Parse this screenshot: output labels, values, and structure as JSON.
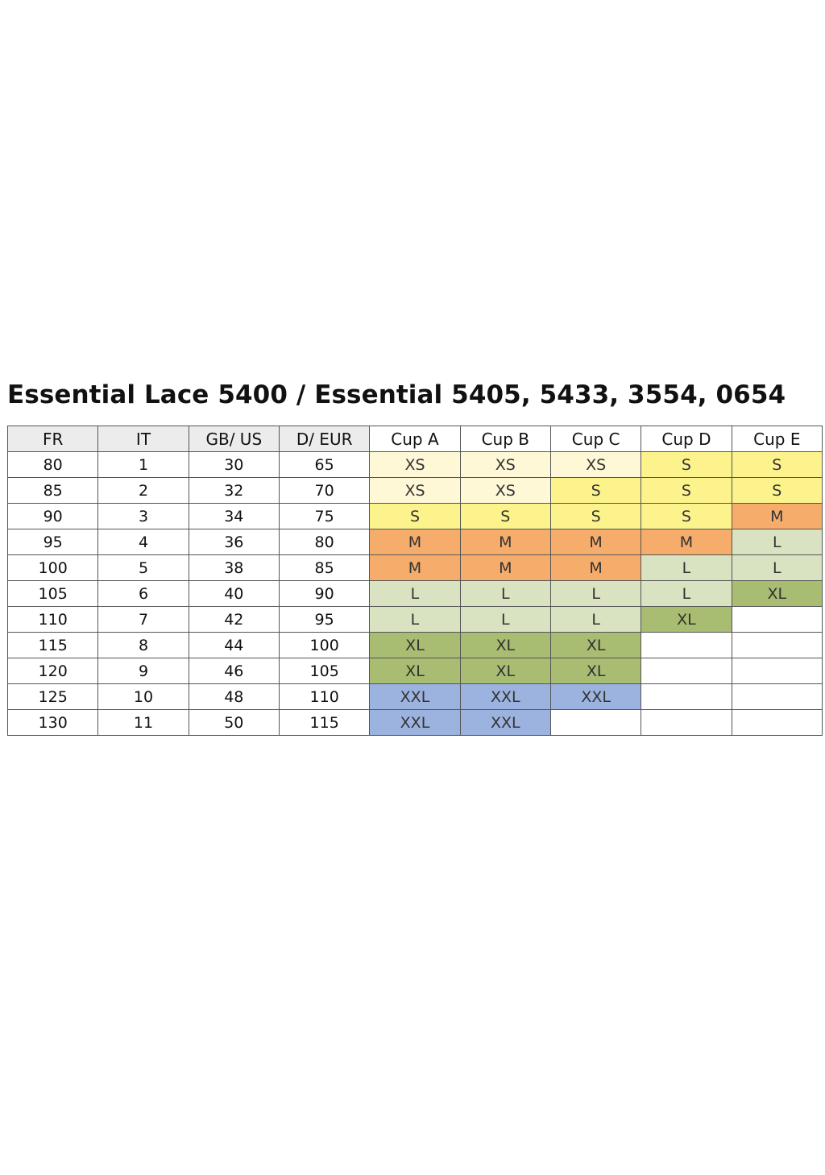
{
  "title": "Essential Lace 5400 / Essential 5405, 5433, 3554, 0654",
  "colors": {
    "XS": "#fef8d6",
    "S": "#fdf38d",
    "M": "#f6ac6b",
    "L": "#d9e2c1",
    "XL": "#a8bc72",
    "XXL": "#9db3df",
    "header_grey": "#ececec",
    "border": "#555555"
  },
  "table": {
    "headers": [
      "FR",
      "IT",
      "GB/ US",
      "D/ EUR",
      "Cup A",
      "Cup B",
      "Cup C",
      "Cup D",
      "Cup E"
    ],
    "rows": [
      {
        "fr": "80",
        "it": "1",
        "gbus": "30",
        "eur": "65",
        "cups": [
          "XS",
          "XS",
          "XS",
          "S",
          "S"
        ]
      },
      {
        "fr": "85",
        "it": "2",
        "gbus": "32",
        "eur": "70",
        "cups": [
          "XS",
          "XS",
          "S",
          "S",
          "S"
        ]
      },
      {
        "fr": "90",
        "it": "3",
        "gbus": "34",
        "eur": "75",
        "cups": [
          "S",
          "S",
          "S",
          "S",
          "M"
        ]
      },
      {
        "fr": "95",
        "it": "4",
        "gbus": "36",
        "eur": "80",
        "cups": [
          "M",
          "M",
          "M",
          "M",
          "L"
        ]
      },
      {
        "fr": "100",
        "it": "5",
        "gbus": "38",
        "eur": "85",
        "cups": [
          "M",
          "M",
          "M",
          "L",
          "L"
        ]
      },
      {
        "fr": "105",
        "it": "6",
        "gbus": "40",
        "eur": "90",
        "cups": [
          "L",
          "L",
          "L",
          "L",
          "XL"
        ]
      },
      {
        "fr": "110",
        "it": "7",
        "gbus": "42",
        "eur": "95",
        "cups": [
          "L",
          "L",
          "L",
          "XL",
          ""
        ]
      },
      {
        "fr": "115",
        "it": "8",
        "gbus": "44",
        "eur": "100",
        "cups": [
          "XL",
          "XL",
          "XL",
          "",
          ""
        ]
      },
      {
        "fr": "120",
        "it": "9",
        "gbus": "46",
        "eur": "105",
        "cups": [
          "XL",
          "XL",
          "XL",
          "",
          ""
        ]
      },
      {
        "fr": "125",
        "it": "10",
        "gbus": "48",
        "eur": "110",
        "cups": [
          "XXL",
          "XXL",
          "XXL",
          "",
          ""
        ]
      },
      {
        "fr": "130",
        "it": "11",
        "gbus": "50",
        "eur": "115",
        "cups": [
          "XXL",
          "XXL",
          "",
          "",
          ""
        ]
      }
    ]
  }
}
